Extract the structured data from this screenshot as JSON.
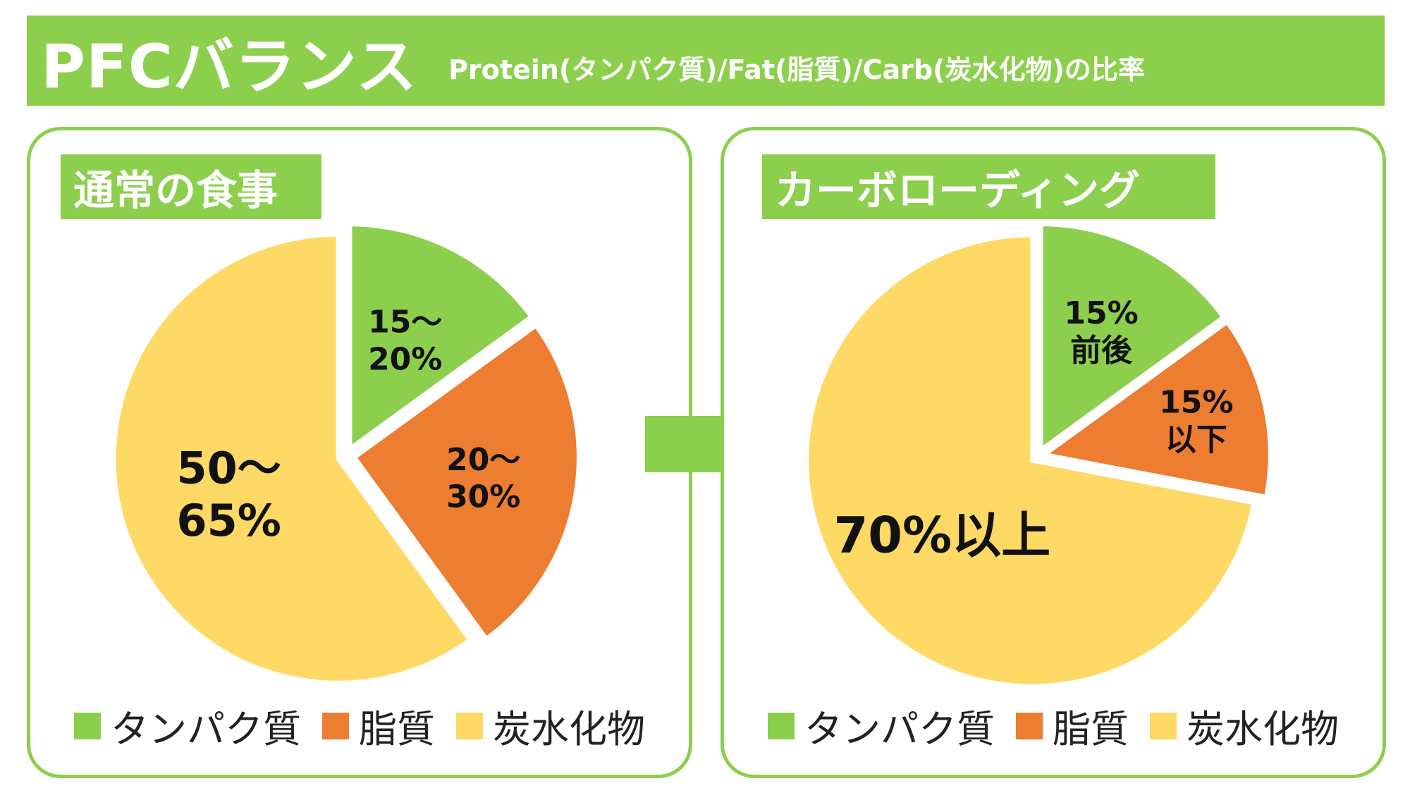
{
  "header": {
    "title": "PFCバランス",
    "subtitle": "Protein(タンパク質)/Fat(脂質)/Carb(炭水化物)の比率"
  },
  "colors": {
    "accent": "#8ccf4d",
    "protein": "#8ccf4d",
    "fat": "#ed7d31",
    "carb": "#ffd966"
  },
  "chart_data": [
    {
      "type": "pie",
      "title": "通常の食事",
      "categories": [
        "タンパク質",
        "脂質",
        "炭水化物"
      ],
      "values": [
        15,
        25,
        60
      ],
      "data_labels": [
        [
          "15～",
          "20%"
        ],
        [
          "20～",
          "30%"
        ],
        [
          "50～",
          "65%"
        ]
      ],
      "legend": "bottom"
    },
    {
      "type": "pie",
      "title": "カーボローディング",
      "categories": [
        "タンパク質",
        "脂質",
        "炭水化物"
      ],
      "values": [
        15,
        13,
        72
      ],
      "data_labels": [
        [
          "15%",
          "前後"
        ],
        [
          "15%",
          "以下"
        ],
        [
          "70%以上"
        ]
      ],
      "legend": "bottom"
    }
  ]
}
